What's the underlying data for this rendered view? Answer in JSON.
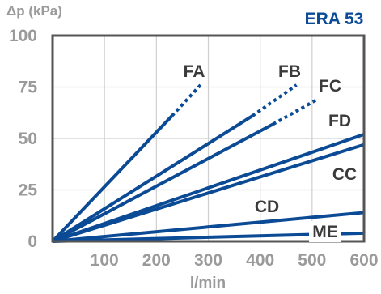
{
  "chart_data": {
    "type": "line",
    "title": "ERA 53",
    "ylabel": "Δp (kPa)",
    "xlabel": "l/min",
    "xlim": [
      0,
      600
    ],
    "ylim": [
      0,
      100
    ],
    "xticks": [
      0,
      100,
      200,
      300,
      400,
      500,
      600
    ],
    "yticks": [
      0,
      25,
      50,
      75,
      100
    ],
    "xtick_labels": [
      "",
      "100",
      "200",
      "300",
      "400",
      "500",
      "600"
    ],
    "ytick_labels": [
      "0",
      "25",
      "50",
      "75",
      "100"
    ],
    "grid": true,
    "colors": {
      "series": "#0b4a95",
      "title": "#0b4a95",
      "axis_text": "#9a9a9a",
      "grid": "#cfcfcf",
      "frame": "#555555",
      "label": "#3a3a3a"
    },
    "series": [
      {
        "name": "FA",
        "solid": [
          [
            0,
            0
          ],
          [
            230,
            61
          ]
        ],
        "dotted": [
          [
            230,
            61
          ],
          [
            285,
            76
          ]
        ]
      },
      {
        "name": "FB",
        "solid": [
          [
            0,
            0
          ],
          [
            385,
            61
          ]
        ],
        "dotted": [
          [
            385,
            61
          ],
          [
            470,
            76
          ]
        ]
      },
      {
        "name": "FC",
        "solid": [
          [
            0,
            0
          ],
          [
            425,
            57
          ]
        ],
        "dotted": [
          [
            425,
            57
          ],
          [
            510,
            69
          ]
        ]
      },
      {
        "name": "FD",
        "solid": [
          [
            0,
            0
          ],
          [
            600,
            52
          ]
        ]
      },
      {
        "name": "CC",
        "solid": [
          [
            0,
            0
          ],
          [
            600,
            47
          ]
        ]
      },
      {
        "name": "CD",
        "solid": [
          [
            0,
            0
          ],
          [
            600,
            14
          ]
        ]
      },
      {
        "name": "ME",
        "solid": [
          [
            0,
            0
          ],
          [
            600,
            4
          ]
        ]
      }
    ]
  }
}
